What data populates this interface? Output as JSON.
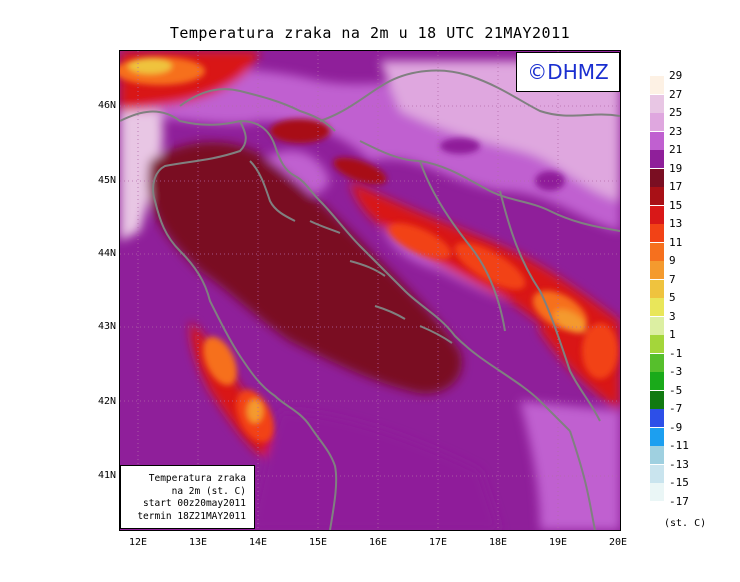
{
  "title": "Temperatura zraka na 2m u 18 UTC 21MAY2011",
  "logo": "©DHMZ",
  "latitude_labels": [
    "46N",
    "45N",
    "44N",
    "43N",
    "42N",
    "41N"
  ],
  "longitude_labels": [
    "12E",
    "13E",
    "14E",
    "15E",
    "16E",
    "17E",
    "18E",
    "19E",
    "20E"
  ],
  "info_box": {
    "line1": "Temperatura zraka",
    "line2": "na 2m (st. C)",
    "line3": "start 00z20may2011",
    "line4": "termin 18Z21MAY2011"
  },
  "legend": {
    "labels": [
      "29",
      "27",
      "25",
      "23",
      "21",
      "19",
      "17",
      "15",
      "13",
      "11",
      "9",
      "7",
      "5",
      "3",
      "1",
      "-1",
      "-3",
      "-5",
      "-7",
      "-9",
      "-11",
      "-13",
      "-15",
      "-17"
    ],
    "colors": [
      "#fdf1e4",
      "#e8c6e4",
      "#dfa7df",
      "#c060d0",
      "#8f1f9a",
      "#7a0e22",
      "#a81016",
      "#d91818",
      "#f24216",
      "#f6701e",
      "#f49a2e",
      "#efc33e",
      "#e9e65a",
      "#dcefa2",
      "#a4d63a",
      "#56bf2c",
      "#1aaa1a",
      "#117a11",
      "#2d4fe8",
      "#1c9ff0",
      "#9fd0e0",
      "#c9e4ee",
      "#eaf6f6"
    ],
    "unit": "(st. C)"
  }
}
